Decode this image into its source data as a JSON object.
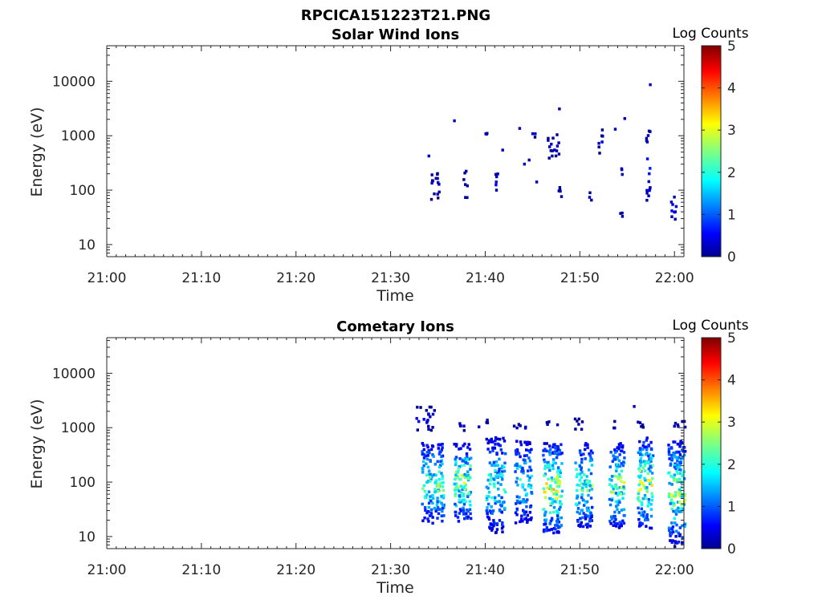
{
  "figure": {
    "title": "RPCICA151223T21.PNG"
  },
  "chart_data": [
    {
      "type": "heatmap",
      "title": "Solar Wind Ions",
      "xlabel": "Time",
      "ylabel": "Energy (eV)",
      "x_ticks": [
        "21:00",
        "21:10",
        "21:20",
        "21:30",
        "21:40",
        "21:50",
        "22:00"
      ],
      "x_range_minutes": [
        0,
        61
      ],
      "y_scale": "log",
      "y_ticks": [
        {
          "value": 10,
          "label": "10"
        },
        {
          "value": 100,
          "label": "100"
        },
        {
          "value": 1000,
          "label": "1000"
        },
        {
          "value": 10000,
          "label": "10000"
        }
      ],
      "ylim": [
        6,
        45000
      ],
      "colorbar": {
        "label": "Log Counts",
        "range": [
          0,
          5
        ],
        "ticks": [
          "0",
          "1",
          "2",
          "3",
          "4",
          "5"
        ],
        "colormap": "jet"
      },
      "clusters": [
        {
          "t": [
            34.0,
            35.0
          ],
          "e": [
            60,
            280
          ],
          "level": 0.1
        },
        {
          "t": [
            37.6,
            38.0
          ],
          "e": [
            45,
            280
          ],
          "level": 0.1
        },
        {
          "t": [
            40.8,
            41.2
          ],
          "e": [
            70,
            280
          ],
          "level": 0.15
        },
        {
          "t": [
            39.6,
            40.1
          ],
          "e": [
            1000,
            1500
          ],
          "level": 0.1
        },
        {
          "t": [
            44.8,
            45.2
          ],
          "e": [
            1000,
            1400
          ],
          "level": 0.1
        },
        {
          "t": [
            46.5,
            47.9
          ],
          "e": [
            380,
            1300
          ],
          "level": 0.1
        },
        {
          "t": [
            47.6,
            48.0
          ],
          "e": [
            35,
            120
          ],
          "level": 0.1
        },
        {
          "t": [
            50.8,
            51.2
          ],
          "e": [
            60,
            100
          ],
          "level": 0.1
        },
        {
          "t": [
            51.7,
            52.4
          ],
          "e": [
            500,
            1400
          ],
          "level": 0.1
        },
        {
          "t": [
            54.2,
            54.4
          ],
          "e": [
            130,
            450
          ],
          "level": 0.1
        },
        {
          "t": [
            53.8,
            54.4
          ],
          "e": [
            30,
            45
          ],
          "level": 0.1
        },
        {
          "t": [
            56.8,
            57.3
          ],
          "e": [
            60,
            1400
          ],
          "level": 0.2
        },
        {
          "t": [
            59.5,
            60.2
          ],
          "e": [
            28,
            85
          ],
          "level": 0.2
        }
      ],
      "points": [
        {
          "t": 33.9,
          "e": 450,
          "level": 0.1
        },
        {
          "t": 36.6,
          "e": 2000,
          "level": 0.1
        },
        {
          "t": 41.7,
          "e": 580,
          "level": 0.1
        },
        {
          "t": 43.5,
          "e": 1450,
          "level": 0.1
        },
        {
          "t": 44.5,
          "e": 380,
          "level": 0.1
        },
        {
          "t": 47.7,
          "e": 3300,
          "level": 0.1
        },
        {
          "t": 53.6,
          "e": 1400,
          "level": 0.1
        },
        {
          "t": 54.6,
          "e": 2200,
          "level": 0.1
        },
        {
          "t": 57.3,
          "e": 9200,
          "level": 0.1
        },
        {
          "t": 45.3,
          "e": 150,
          "level": 0.1
        },
        {
          "t": 44.0,
          "e": 320,
          "level": 0.1
        }
      ]
    },
    {
      "type": "heatmap",
      "title": "Cometary Ions",
      "xlabel": "Time",
      "ylabel": "Energy (eV)",
      "x_ticks": [
        "21:00",
        "21:10",
        "21:20",
        "21:30",
        "21:40",
        "21:50",
        "22:00"
      ],
      "x_range_minutes": [
        0,
        61
      ],
      "y_scale": "log",
      "y_ticks": [
        {
          "value": 10,
          "label": "10"
        },
        {
          "value": 100,
          "label": "100"
        },
        {
          "value": 1000,
          "label": "1000"
        },
        {
          "value": 10000,
          "label": "10000"
        }
      ],
      "ylim": [
        6,
        45000
      ],
      "colorbar": {
        "label": "Log Counts",
        "range": [
          0,
          5
        ],
        "ticks": [
          "0",
          "1",
          "2",
          "3",
          "4",
          "5"
        ],
        "colormap": "jet"
      },
      "clusters": [
        {
          "t": [
            33.2,
            35.5
          ],
          "e": [
            18,
            550
          ],
          "level": 0.7
        },
        {
          "t": [
            36.6,
            38.4
          ],
          "e": [
            20,
            550
          ],
          "level": 0.8
        },
        {
          "t": [
            40.0,
            42.0
          ],
          "e": [
            12,
            700
          ],
          "level": 0.6
        },
        {
          "t": [
            43.0,
            44.8
          ],
          "e": [
            18,
            600
          ],
          "level": 0.6
        },
        {
          "t": [
            46.0,
            48.0
          ],
          "e": [
            12,
            550
          ],
          "level": 0.85
        },
        {
          "t": [
            49.4,
            51.2
          ],
          "e": [
            15,
            550
          ],
          "level": 0.7
        },
        {
          "t": [
            53.0,
            54.6
          ],
          "e": [
            15,
            550
          ],
          "level": 0.75
        },
        {
          "t": [
            56.0,
            57.6
          ],
          "e": [
            15,
            700
          ],
          "level": 0.8
        },
        {
          "t": [
            59.2,
            61.0
          ],
          "e": [
            8,
            600
          ],
          "level": 0.8
        },
        {
          "t": [
            32.6,
            34.4
          ],
          "e": [
            900,
            2600
          ],
          "level": 0.15
        },
        {
          "t": [
            37.0,
            37.8
          ],
          "e": [
            900,
            1800
          ],
          "level": 0.1
        },
        {
          "t": [
            40.0,
            40.3
          ],
          "e": [
            1200,
            1600
          ],
          "level": 0.1
        },
        {
          "t": [
            42.5,
            44.2
          ],
          "e": [
            900,
            1300
          ],
          "level": 0.1
        },
        {
          "t": [
            46.2,
            46.8
          ],
          "e": [
            1000,
            1400
          ],
          "level": 0.1
        },
        {
          "t": [
            49.2,
            50.4
          ],
          "e": [
            900,
            1600
          ],
          "level": 0.1
        },
        {
          "t": [
            53.0,
            53.6
          ],
          "e": [
            900,
            1400
          ],
          "level": 0.1
        },
        {
          "t": [
            56.0,
            56.6
          ],
          "e": [
            1000,
            2600
          ],
          "level": 0.1
        },
        {
          "t": [
            59.5,
            61.0
          ],
          "e": [
            900,
            1400
          ],
          "level": 0.1
        }
      ],
      "points": [
        {
          "t": 34.5,
          "e": 2200,
          "level": 0.1
        },
        {
          "t": 39.2,
          "e": 1100,
          "level": 0.1
        },
        {
          "t": 47.5,
          "e": 1200,
          "level": 0.1
        },
        {
          "t": 55.6,
          "e": 2600,
          "level": 0.1
        },
        {
          "t": 60.2,
          "e": 1200,
          "level": 0.1
        },
        {
          "t": 59.9,
          "e": 7,
          "level": 0.1
        }
      ]
    }
  ]
}
